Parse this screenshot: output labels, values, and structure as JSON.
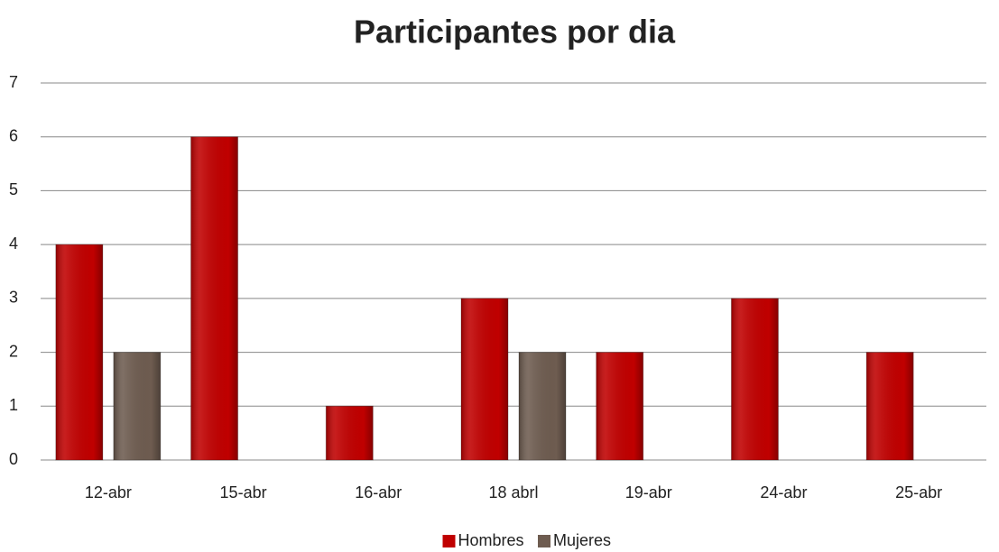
{
  "chart_data": {
    "type": "bar",
    "title": "Participantes por dia",
    "categories": [
      "12-abr",
      "15-abr",
      "16-abr",
      "18 abrl",
      "19-abr",
      "24-abr",
      "25-abr"
    ],
    "series": [
      {
        "name": "Hombres",
        "color": "#c00000",
        "values": [
          4,
          6,
          1,
          3,
          2,
          3,
          2
        ]
      },
      {
        "name": "Mujeres",
        "color": "#6e5c50",
        "values": [
          2,
          0,
          0,
          2,
          0,
          0,
          0
        ]
      }
    ],
    "ylim": [
      0,
      7
    ],
    "yticks": [
      0,
      1,
      2,
      3,
      4,
      5,
      6,
      7
    ],
    "grid": true,
    "legend": "bottom"
  }
}
